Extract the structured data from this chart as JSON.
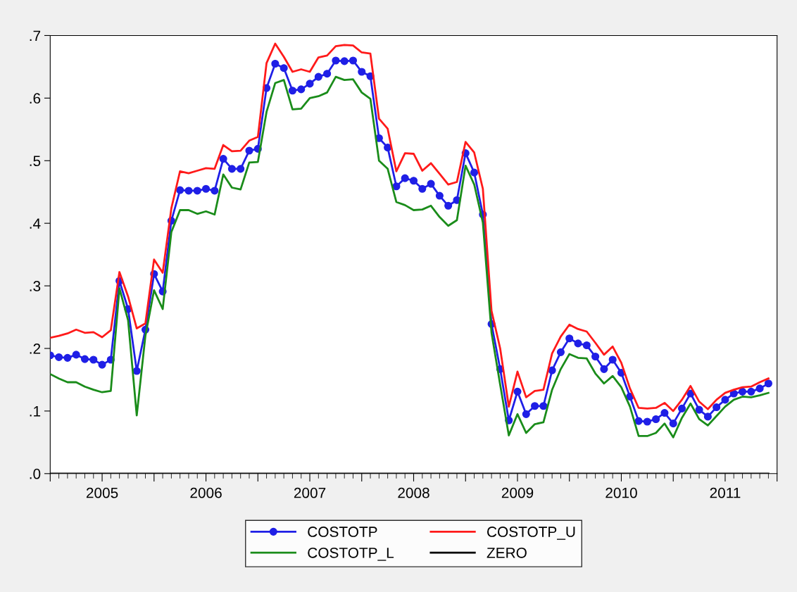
{
  "chart_data": {
    "type": "line",
    "x": [
      "2005-01",
      "2005-02",
      "2005-03",
      "2005-04",
      "2005-05",
      "2005-06",
      "2005-07",
      "2005-08",
      "2005-09",
      "2005-10",
      "2005-11",
      "2005-12",
      "2006-01",
      "2006-02",
      "2006-03",
      "2006-04",
      "2006-05",
      "2006-06",
      "2006-07",
      "2006-08",
      "2006-09",
      "2006-10",
      "2006-11",
      "2006-12",
      "2007-01",
      "2007-02",
      "2007-03",
      "2007-04",
      "2007-05",
      "2007-06",
      "2007-07",
      "2007-08",
      "2007-09",
      "2007-10",
      "2007-11",
      "2007-12",
      "2008-01",
      "2008-02",
      "2008-03",
      "2008-04",
      "2008-05",
      "2008-06",
      "2008-07",
      "2008-08",
      "2008-09",
      "2008-10",
      "2008-11",
      "2008-12",
      "2009-01",
      "2009-02",
      "2009-03",
      "2009-04",
      "2009-05",
      "2009-06",
      "2009-07",
      "2009-08",
      "2009-09",
      "2009-10",
      "2009-11",
      "2009-12",
      "2010-01",
      "2010-02",
      "2010-03",
      "2010-04",
      "2010-05",
      "2010-06",
      "2010-07",
      "2010-08",
      "2010-09",
      "2010-10",
      "2010-11",
      "2010-12",
      "2011-01",
      "2011-02",
      "2011-03",
      "2011-04",
      "2011-05",
      "2011-06",
      "2011-07",
      "2011-08",
      "2011-09",
      "2011-10",
      "2011-11",
      "2011-12"
    ],
    "series": [
      {
        "name": "COSTOTP",
        "color": "#1f1fe6",
        "marker": "circle",
        "values": [
          0.189,
          0.186,
          0.185,
          0.19,
          0.183,
          0.182,
          0.174,
          0.182,
          0.308,
          0.263,
          0.164,
          0.23,
          0.319,
          0.291,
          0.404,
          0.453,
          0.452,
          0.452,
          0.455,
          0.452,
          0.503,
          0.487,
          0.487,
          0.516,
          0.519,
          0.616,
          0.655,
          0.648,
          0.612,
          0.614,
          0.623,
          0.634,
          0.639,
          0.66,
          0.659,
          0.66,
          0.642,
          0.635,
          0.536,
          0.521,
          0.459,
          0.472,
          0.468,
          0.455,
          0.463,
          0.444,
          0.428,
          0.437,
          0.512,
          0.481,
          0.414,
          0.239,
          0.167,
          0.085,
          0.131,
          0.095,
          0.108,
          0.108,
          0.165,
          0.194,
          0.216,
          0.208,
          0.205,
          0.187,
          0.167,
          0.182,
          0.161,
          0.123,
          0.084,
          0.083,
          0.087,
          0.097,
          0.08,
          0.104,
          0.128,
          0.102,
          0.091,
          0.106,
          0.118,
          0.128,
          0.131,
          0.131,
          0.136,
          0.144
        ]
      },
      {
        "name": "COSTOTP_U",
        "color": "#ff1a1a",
        "values": [
          0.217,
          0.22,
          0.224,
          0.23,
          0.225,
          0.226,
          0.218,
          0.229,
          0.322,
          0.283,
          0.232,
          0.24,
          0.342,
          0.321,
          0.424,
          0.483,
          0.48,
          0.484,
          0.488,
          0.487,
          0.525,
          0.515,
          0.516,
          0.532,
          0.538,
          0.656,
          0.687,
          0.666,
          0.642,
          0.646,
          0.642,
          0.665,
          0.668,
          0.683,
          0.685,
          0.684,
          0.673,
          0.671,
          0.567,
          0.551,
          0.483,
          0.512,
          0.511,
          0.484,
          0.496,
          0.479,
          0.462,
          0.466,
          0.53,
          0.513,
          0.455,
          0.26,
          0.2,
          0.107,
          0.163,
          0.122,
          0.132,
          0.134,
          0.192,
          0.219,
          0.238,
          0.231,
          0.227,
          0.209,
          0.19,
          0.203,
          0.177,
          0.136,
          0.105,
          0.104,
          0.105,
          0.113,
          0.1,
          0.118,
          0.14,
          0.115,
          0.103,
          0.118,
          0.129,
          0.134,
          0.138,
          0.139,
          0.146,
          0.152
        ]
      },
      {
        "name": "COSTOTP_L",
        "color": "#1a8c1a",
        "values": [
          0.159,
          0.152,
          0.146,
          0.146,
          0.139,
          0.134,
          0.13,
          0.132,
          0.296,
          0.245,
          0.093,
          0.22,
          0.293,
          0.263,
          0.386,
          0.421,
          0.421,
          0.415,
          0.419,
          0.414,
          0.478,
          0.457,
          0.454,
          0.497,
          0.498,
          0.578,
          0.624,
          0.629,
          0.582,
          0.583,
          0.6,
          0.603,
          0.609,
          0.634,
          0.629,
          0.63,
          0.609,
          0.599,
          0.5,
          0.487,
          0.434,
          0.429,
          0.421,
          0.422,
          0.428,
          0.41,
          0.396,
          0.405,
          0.492,
          0.462,
          0.401,
          0.225,
          0.142,
          0.061,
          0.095,
          0.065,
          0.079,
          0.082,
          0.134,
          0.167,
          0.191,
          0.185,
          0.184,
          0.16,
          0.144,
          0.156,
          0.138,
          0.107,
          0.06,
          0.06,
          0.065,
          0.08,
          0.058,
          0.089,
          0.112,
          0.087,
          0.077,
          0.092,
          0.107,
          0.118,
          0.123,
          0.122,
          0.125,
          0.129
        ]
      },
      {
        "name": "ZERO",
        "color": "#000000",
        "values": [
          0,
          0,
          0,
          0,
          0,
          0,
          0,
          0,
          0,
          0,
          0,
          0,
          0,
          0,
          0,
          0,
          0,
          0,
          0,
          0,
          0,
          0,
          0,
          0,
          0,
          0,
          0,
          0,
          0,
          0,
          0,
          0,
          0,
          0,
          0,
          0,
          0,
          0,
          0,
          0,
          0,
          0,
          0,
          0,
          0,
          0,
          0,
          0,
          0,
          0,
          0,
          0,
          0,
          0,
          0,
          0,
          0,
          0,
          0,
          0,
          0,
          0,
          0,
          0,
          0,
          0,
          0,
          0,
          0,
          0,
          0,
          0,
          0,
          0,
          0,
          0,
          0,
          0,
          0,
          0,
          0,
          0,
          0,
          0
        ]
      }
    ],
    "xlim": [
      "2005-01",
      "2012-01"
    ],
    "xticks": [
      {
        "value": "2005-01",
        "label": null
      },
      {
        "value": "2005-07",
        "label": "2005"
      },
      {
        "value": "2006-01",
        "label": null
      },
      {
        "value": "2006-07",
        "label": "2006"
      },
      {
        "value": "2007-01",
        "label": null
      },
      {
        "value": "2007-07",
        "label": "2007"
      },
      {
        "value": "2008-01",
        "label": null
      },
      {
        "value": "2008-07",
        "label": "2008"
      },
      {
        "value": "2009-01",
        "label": null
      },
      {
        "value": "2009-07",
        "label": "2009"
      },
      {
        "value": "2010-01",
        "label": null
      },
      {
        "value": "2010-07",
        "label": "2010"
      },
      {
        "value": "2011-01",
        "label": null
      },
      {
        "value": "2011-07",
        "label": "2011"
      },
      {
        "value": "2012-01",
        "label": null
      }
    ],
    "ylim": [
      0,
      0.7
    ],
    "yticks": [
      {
        "value": 0,
        "label": ".0"
      },
      {
        "value": 0.1,
        "label": ".1"
      },
      {
        "value": 0.2,
        "label": ".2"
      },
      {
        "value": 0.3,
        "label": ".3"
      },
      {
        "value": 0.4,
        "label": ".4"
      },
      {
        "value": 0.5,
        "label": ".5"
      },
      {
        "value": 0.6,
        "label": ".6"
      },
      {
        "value": 0.7,
        "label": ".7"
      }
    ],
    "grid": false,
    "legend": "bottom",
    "line_style": "solid"
  }
}
